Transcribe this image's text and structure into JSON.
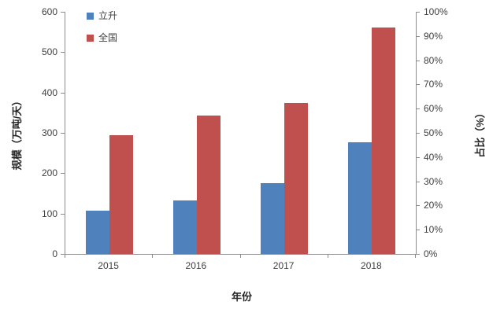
{
  "chart_data": {
    "type": "bar",
    "title": "",
    "categories": [
      "2015",
      "2016",
      "2017",
      "2018"
    ],
    "series": [
      {
        "name": "立升",
        "color": "#4F81BD",
        "axis": "left",
        "values": [
          108,
          132,
          175,
          277
        ]
      },
      {
        "name": "全国",
        "color": "#C0504D",
        "axis": "left",
        "values": [
          295,
          343,
          374,
          561
        ]
      }
    ],
    "xlabel": "年份",
    "left_axis": {
      "label": "规模（万吨/天）",
      "min": 0,
      "max": 600,
      "step": 100,
      "ticks": [
        "0",
        "100",
        "200",
        "300",
        "400",
        "500",
        "600"
      ]
    },
    "right_axis": {
      "label": "占比（%）",
      "min": 0,
      "max": 100,
      "step": 10,
      "ticks": [
        "0%",
        "10%",
        "20%",
        "30%",
        "40%",
        "50%",
        "60%",
        "70%",
        "80%",
        "90%",
        "100%"
      ]
    },
    "legend": {
      "position": "top-left",
      "entries": [
        {
          "label": "立升",
          "color": "#4F81BD"
        },
        {
          "label": "全国",
          "color": "#C0504D"
        }
      ]
    },
    "grid": false,
    "colors": {
      "axis_line": "#8c8c8c",
      "tick_label": "#404040",
      "background": "#FFFFFF"
    }
  }
}
